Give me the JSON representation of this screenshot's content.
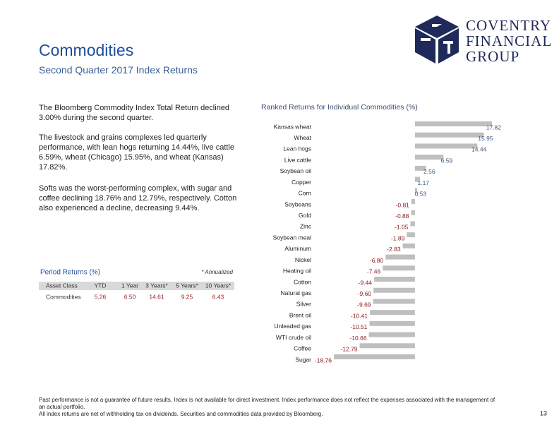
{
  "header": {
    "title": "Commodities",
    "subtitle": "Second Quarter 2017 Index Returns"
  },
  "logo": {
    "lines": [
      "COVENTRY",
      "FINANCIAL",
      "GROUP"
    ]
  },
  "paragraphs": [
    "The Bloomberg Commodity Index Total Return declined 3.00% during the second quarter.",
    "The livestock and grains complexes led quarterly performance, with lean hogs returning 14.44%, live cattle 6.59%, wheat (Chicago) 15.95%, and wheat (Kansas) 17.82%.",
    "Softs was the worst-performing complex, with sugar and coffee declining 18.76% and 12.79%, respectively. Cotton also experienced a decline, decreasing 9.44%."
  ],
  "period_returns": {
    "title": "Period Returns (%)",
    "note": "* Annualized",
    "columns": [
      "Asset Class",
      "YTD",
      "1 Year",
      "3 Years*",
      "5 Years*",
      "10 Years*"
    ],
    "rows": [
      [
        "Commodities",
        "5.26",
        "6.50",
        "14.61",
        "9.25",
        "6.43"
      ]
    ]
  },
  "chart_data": {
    "type": "bar",
    "orientation": "horizontal",
    "title": "Ranked Returns for Individual Commodities (%)",
    "categories": [
      "Kansas wheat",
      "Wheat",
      "Lean hogs",
      "Live cattle",
      "Soybean oil",
      "Copper",
      "Corn",
      "Soybeans",
      "Gold",
      "Zinc",
      "Soybean meal",
      "Aluminum",
      "Nickel",
      "Heating oil",
      "Cotton",
      "Natural gas",
      "Silver",
      "Brent oil",
      "Unleaded gas",
      "WTI crude oil",
      "Coffee",
      "Sugar"
    ],
    "values": [
      17.82,
      15.95,
      14.44,
      6.59,
      2.56,
      1.17,
      0.53,
      -0.81,
      -0.88,
      -1.05,
      -1.89,
      -2.83,
      -6.8,
      -7.46,
      -9.44,
      -9.6,
      -9.69,
      -10.41,
      -10.51,
      -10.66,
      -12.79,
      -18.76
    ],
    "value_labels": [
      "17.82",
      "15.95",
      "14.44",
      "6.59",
      "2.56",
      "1.17",
      "0.53",
      "-0.81",
      "-0.88",
      "-1.05",
      "-1.89",
      "-2.83",
      "-6.80",
      "-7.46",
      "-9.44",
      "-9.60",
      "-9.69",
      "-10.41",
      "-10.51",
      "-10.66",
      "-12.79",
      "-18.76"
    ],
    "color": "#bfbfbf",
    "positive_label_color": "#3d5a7e",
    "negative_label_color": "#8b1a1a"
  },
  "footer": {
    "disclaimer": "Past performance is not a guarantee of future results. Index is not available for direct investment. Index performance does not reflect the expenses associated with the management of an actual portfolio.",
    "sources": "All index returns are net of withholding tax on dividends. Securities and commodities data provided by Bloomberg.",
    "page": "13"
  }
}
